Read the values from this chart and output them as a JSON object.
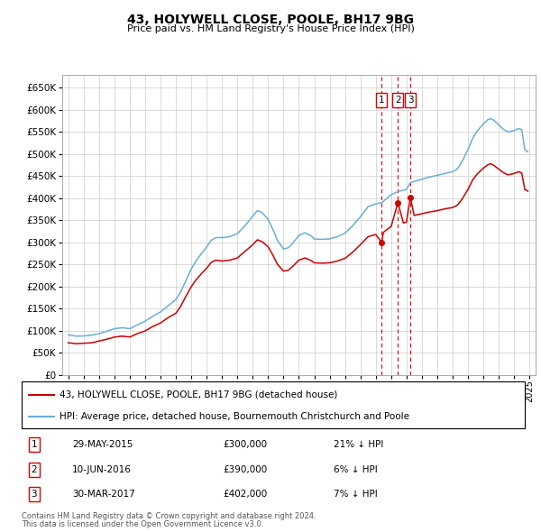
{
  "title": "43, HOLYWELL CLOSE, POOLE, BH17 9BG",
  "subtitle": "Price paid vs. HM Land Registry's House Price Index (HPI)",
  "legend_line1": "43, HOLYWELL CLOSE, POOLE, BH17 9BG (detached house)",
  "legend_line2": "HPI: Average price, detached house, Bournemouth Christchurch and Poole",
  "footer1": "Contains HM Land Registry data © Crown copyright and database right 2024.",
  "footer2": "This data is licensed under the Open Government Licence v3.0.",
  "transactions": [
    {
      "num": 1,
      "date": "29-MAY-2015",
      "price": 300000,
      "pct": "21%",
      "direction": "↓",
      "x_val": 2015.38
    },
    {
      "num": 2,
      "date": "10-JUN-2016",
      "price": 390000,
      "pct": "6%",
      "direction": "↓",
      "x_val": 2016.44
    },
    {
      "num": 3,
      "date": "30-MAR-2017",
      "price": 402000,
      "pct": "7%",
      "direction": "↓",
      "x_val": 2017.25
    }
  ],
  "hpi_color": "#6baed6",
  "price_color": "#cc0000",
  "dashed_color": "#dd0000",
  "ylim": [
    0,
    680000
  ],
  "yticks": [
    0,
    50000,
    100000,
    150000,
    200000,
    250000,
    300000,
    350000,
    400000,
    450000,
    500000,
    550000,
    600000,
    650000
  ],
  "xlim_start": 1994.6,
  "xlim_end": 2025.4,
  "xticks": [
    1995,
    1996,
    1997,
    1998,
    1999,
    2000,
    2001,
    2002,
    2003,
    2004,
    2005,
    2006,
    2007,
    2008,
    2009,
    2010,
    2011,
    2012,
    2013,
    2014,
    2015,
    2016,
    2017,
    2018,
    2019,
    2020,
    2021,
    2022,
    2023,
    2024,
    2025
  ],
  "hpi_data": [
    [
      1995.0,
      91000
    ],
    [
      1995.5,
      88000
    ],
    [
      1996.0,
      88500
    ],
    [
      1996.5,
      90000
    ],
    [
      1997.0,
      94000
    ],
    [
      1997.5,
      99000
    ],
    [
      1998.0,
      105000
    ],
    [
      1998.5,
      107000
    ],
    [
      1999.0,
      105000
    ],
    [
      1999.5,
      114000
    ],
    [
      2000.0,
      122000
    ],
    [
      2000.5,
      133000
    ],
    [
      2001.0,
      143000
    ],
    [
      2001.5,
      157000
    ],
    [
      2002.0,
      171000
    ],
    [
      2002.3,
      188000
    ],
    [
      2002.6,
      210000
    ],
    [
      2003.0,
      240000
    ],
    [
      2003.3,
      258000
    ],
    [
      2003.6,
      272000
    ],
    [
      2004.0,
      290000
    ],
    [
      2004.3,
      305000
    ],
    [
      2004.6,
      311000
    ],
    [
      2005.0,
      311000
    ],
    [
      2005.5,
      313000
    ],
    [
      2006.0,
      320000
    ],
    [
      2006.5,
      338000
    ],
    [
      2007.0,
      360000
    ],
    [
      2007.3,
      372000
    ],
    [
      2007.6,
      368000
    ],
    [
      2008.0,
      352000
    ],
    [
      2008.3,
      330000
    ],
    [
      2008.6,
      305000
    ],
    [
      2009.0,
      285000
    ],
    [
      2009.3,
      288000
    ],
    [
      2009.6,
      298000
    ],
    [
      2010.0,
      316000
    ],
    [
      2010.4,
      322000
    ],
    [
      2010.8,
      315000
    ],
    [
      2011.0,
      308000
    ],
    [
      2011.5,
      307000
    ],
    [
      2012.0,
      308000
    ],
    [
      2012.5,
      313000
    ],
    [
      2013.0,
      321000
    ],
    [
      2013.5,
      338000
    ],
    [
      2014.0,
      358000
    ],
    [
      2014.5,
      381000
    ],
    [
      2015.0,
      387000
    ],
    [
      2015.38,
      390000
    ],
    [
      2015.5,
      393000
    ],
    [
      2016.0,
      408000
    ],
    [
      2016.44,
      415000
    ],
    [
      2016.8,
      418000
    ],
    [
      2017.0,
      420000
    ],
    [
      2017.25,
      435000
    ],
    [
      2017.5,
      438000
    ],
    [
      2018.0,
      443000
    ],
    [
      2018.5,
      448000
    ],
    [
      2019.0,
      452000
    ],
    [
      2019.5,
      456000
    ],
    [
      2020.0,
      460000
    ],
    [
      2020.3,
      466000
    ],
    [
      2020.6,
      482000
    ],
    [
      2021.0,
      510000
    ],
    [
      2021.3,
      535000
    ],
    [
      2021.6,
      552000
    ],
    [
      2022.0,
      568000
    ],
    [
      2022.3,
      578000
    ],
    [
      2022.5,
      580000
    ],
    [
      2022.7,
      576000
    ],
    [
      2023.0,
      566000
    ],
    [
      2023.3,
      556000
    ],
    [
      2023.6,
      550000
    ],
    [
      2024.0,
      553000
    ],
    [
      2024.3,
      558000
    ],
    [
      2024.5,
      555000
    ],
    [
      2024.7,
      510000
    ],
    [
      2024.9,
      505000
    ]
  ],
  "price_data": [
    [
      1995.0,
      73000
    ],
    [
      1995.5,
      71000
    ],
    [
      1996.0,
      72000
    ],
    [
      1996.5,
      73000
    ],
    [
      1997.0,
      77000
    ],
    [
      1997.5,
      81000
    ],
    [
      1998.0,
      86000
    ],
    [
      1998.5,
      88000
    ],
    [
      1999.0,
      86000
    ],
    [
      1999.5,
      94000
    ],
    [
      2000.0,
      100000
    ],
    [
      2000.5,
      110000
    ],
    [
      2001.0,
      118000
    ],
    [
      2001.5,
      130000
    ],
    [
      2002.0,
      140000
    ],
    [
      2002.3,
      155000
    ],
    [
      2002.6,
      175000
    ],
    [
      2003.0,
      200000
    ],
    [
      2003.3,
      215000
    ],
    [
      2003.6,
      227000
    ],
    [
      2004.0,
      242000
    ],
    [
      2004.3,
      255000
    ],
    [
      2004.6,
      260000
    ],
    [
      2005.0,
      258000
    ],
    [
      2005.5,
      260000
    ],
    [
      2006.0,
      265000
    ],
    [
      2006.5,
      280000
    ],
    [
      2007.0,
      295000
    ],
    [
      2007.3,
      306000
    ],
    [
      2007.6,
      302000
    ],
    [
      2008.0,
      290000
    ],
    [
      2008.3,
      272000
    ],
    [
      2008.6,
      251000
    ],
    [
      2009.0,
      235000
    ],
    [
      2009.3,
      237000
    ],
    [
      2009.6,
      246000
    ],
    [
      2010.0,
      260000
    ],
    [
      2010.4,
      265000
    ],
    [
      2010.8,
      259000
    ],
    [
      2011.0,
      254000
    ],
    [
      2011.5,
      253000
    ],
    [
      2012.0,
      254000
    ],
    [
      2012.5,
      258000
    ],
    [
      2013.0,
      264000
    ],
    [
      2013.5,
      278000
    ],
    [
      2014.0,
      295000
    ],
    [
      2014.5,
      313000
    ],
    [
      2015.0,
      318000
    ],
    [
      2015.38,
      300000
    ],
    [
      2015.5,
      323000
    ],
    [
      2016.0,
      336000
    ],
    [
      2016.44,
      390000
    ],
    [
      2016.8,
      344000
    ],
    [
      2017.0,
      346000
    ],
    [
      2017.25,
      402000
    ],
    [
      2017.5,
      361000
    ],
    [
      2018.0,
      365000
    ],
    [
      2018.5,
      369000
    ],
    [
      2019.0,
      372000
    ],
    [
      2019.5,
      376000
    ],
    [
      2020.0,
      379000
    ],
    [
      2020.3,
      384000
    ],
    [
      2020.6,
      397000
    ],
    [
      2021.0,
      420000
    ],
    [
      2021.3,
      441000
    ],
    [
      2021.6,
      455000
    ],
    [
      2022.0,
      468000
    ],
    [
      2022.3,
      476000
    ],
    [
      2022.5,
      478000
    ],
    [
      2022.7,
      474000
    ],
    [
      2023.0,
      466000
    ],
    [
      2023.3,
      458000
    ],
    [
      2023.6,
      453000
    ],
    [
      2024.0,
      456000
    ],
    [
      2024.3,
      460000
    ],
    [
      2024.5,
      457000
    ],
    [
      2024.7,
      420000
    ],
    [
      2024.9,
      416000
    ]
  ]
}
